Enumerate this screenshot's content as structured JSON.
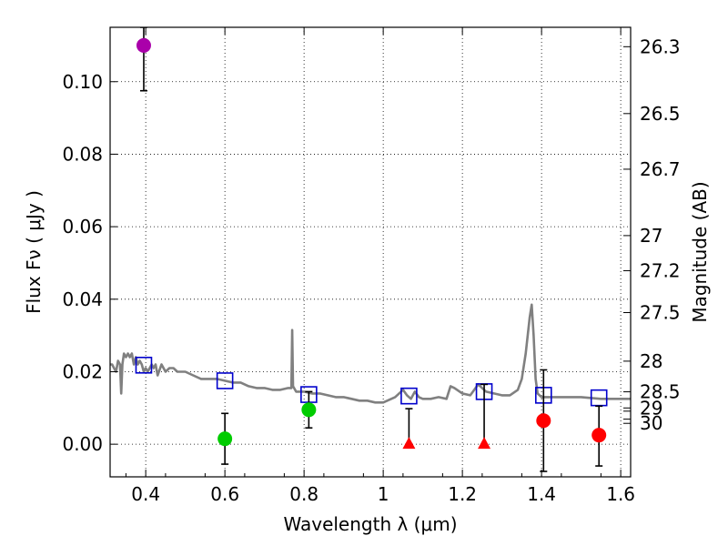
{
  "chart_data": {
    "type": "scatter",
    "title": "",
    "xlabel": "Wavelength  λ (μm)",
    "ylabel": "Flux  Fν  ( μJy )",
    "ylabel_right": "Magnitude (AB)",
    "xlim": [
      0.31,
      1.625
    ],
    "ylim": [
      -0.009,
      0.115
    ],
    "grid": true,
    "x_ticks": [
      0.4,
      0.6,
      0.8,
      1.0,
      1.2,
      1.4,
      1.6
    ],
    "x_tick_labels": [
      "0.4",
      "0.6",
      "0.8",
      "1",
      "1.2",
      "1.4",
      "1.6"
    ],
    "y_ticks": [
      0.0,
      0.02,
      0.04,
      0.06,
      0.08,
      0.1
    ],
    "y_tick_labels": [
      "0.00",
      "0.02",
      "0.04",
      "0.06",
      "0.08",
      "0.10"
    ],
    "right_axis": {
      "labels": [
        "26.3",
        "26.5",
        "26.7",
        "27",
        "27.2",
        "27.5",
        "28",
        "28.5",
        "29",
        "30"
      ],
      "magnitudes": [
        26.3,
        26.5,
        26.7,
        27.0,
        27.2,
        27.5,
        28.0,
        28.5,
        28.9,
        29.5
      ],
      "extra_ticks": [
        29.0,
        29.3
      ]
    },
    "series": [
      {
        "marker": "line",
        "color": "#808080",
        "x": [
          0.31,
          0.315,
          0.32,
          0.325,
          0.33,
          0.335,
          0.338,
          0.341,
          0.345,
          0.35,
          0.355,
          0.36,
          0.365,
          0.37,
          0.375,
          0.38,
          0.385,
          0.39,
          0.395,
          0.4,
          0.405,
          0.41,
          0.415,
          0.42,
          0.425,
          0.43,
          0.44,
          0.45,
          0.46,
          0.47,
          0.48,
          0.5,
          0.52,
          0.54,
          0.56,
          0.58,
          0.6,
          0.62,
          0.64,
          0.66,
          0.68,
          0.7,
          0.72,
          0.74,
          0.76,
          0.768,
          0.77,
          0.772,
          0.78,
          0.8,
          0.82,
          0.84,
          0.86,
          0.88,
          0.9,
          0.92,
          0.94,
          0.96,
          0.98,
          1.0,
          1.03,
          1.05,
          1.06,
          1.07,
          1.08,
          1.09,
          1.1,
          1.12,
          1.14,
          1.16,
          1.17,
          1.18,
          1.2,
          1.22,
          1.24,
          1.26,
          1.28,
          1.3,
          1.32,
          1.34,
          1.35,
          1.36,
          1.37,
          1.375,
          1.38,
          1.385,
          1.39,
          1.4,
          1.42,
          1.45,
          1.5,
          1.55,
          1.6,
          1.625
        ],
        "y": [
          0.022,
          0.022,
          0.021,
          0.02,
          0.023,
          0.022,
          0.014,
          0.022,
          0.025,
          0.024,
          0.025,
          0.024,
          0.025,
          0.022,
          0.024,
          0.022,
          0.023,
          0.022,
          0.02,
          0.021,
          0.02,
          0.021,
          0.022,
          0.021,
          0.022,
          0.019,
          0.022,
          0.02,
          0.021,
          0.021,
          0.02,
          0.02,
          0.019,
          0.018,
          0.018,
          0.018,
          0.0175,
          0.017,
          0.017,
          0.016,
          0.0155,
          0.0155,
          0.015,
          0.015,
          0.0155,
          0.0155,
          0.0315,
          0.016,
          0.0145,
          0.0145,
          0.014,
          0.014,
          0.0135,
          0.013,
          0.013,
          0.0125,
          0.012,
          0.012,
          0.0115,
          0.0115,
          0.013,
          0.015,
          0.0135,
          0.0125,
          0.0145,
          0.013,
          0.0125,
          0.0125,
          0.013,
          0.0125,
          0.016,
          0.0155,
          0.014,
          0.0135,
          0.0165,
          0.0145,
          0.014,
          0.0135,
          0.0135,
          0.015,
          0.018,
          0.025,
          0.035,
          0.0385,
          0.03,
          0.018,
          0.014,
          0.013,
          0.013,
          0.013,
          0.013,
          0.0125,
          0.0125,
          0.0125
        ]
      },
      {
        "marker": "square",
        "color": "#0000cc",
        "x": [
          0.395,
          0.6,
          0.812,
          1.065,
          1.255,
          1.405,
          1.545
        ],
        "y": [
          0.0218,
          0.0175,
          0.0137,
          0.0133,
          0.0145,
          0.0135,
          0.0128
        ]
      },
      {
        "marker": "circle",
        "color": "#aa00aa",
        "x": [
          0.395
        ],
        "y": [
          0.11
        ],
        "yerr_low": [
          0.0975
        ],
        "yerr_high": [
          0.115
        ]
      },
      {
        "marker": "circle",
        "color": "#00cc00",
        "x": [
          0.6,
          0.812
        ],
        "y": [
          0.0015,
          0.0095
        ],
        "yerr_low": [
          -0.0055,
          0.0045
        ],
        "yerr_high": [
          0.0085,
          0.0145
        ]
      },
      {
        "marker": "circle",
        "color": "#ff0000",
        "x": [
          1.405,
          1.545
        ],
        "y": [
          0.0065,
          0.0025
        ],
        "yerr_low": [
          -0.0075,
          -0.006
        ],
        "yerr_high": [
          0.0205,
          0.0105
        ]
      },
      {
        "marker": "triangle",
        "color": "#ff0000",
        "x": [
          1.065,
          1.255
        ],
        "y": [
          0.0,
          0.0
        ],
        "yerr_low": [
          0.0,
          0.0
        ],
        "yerr_high": [
          0.0098,
          0.0165
        ]
      }
    ]
  }
}
